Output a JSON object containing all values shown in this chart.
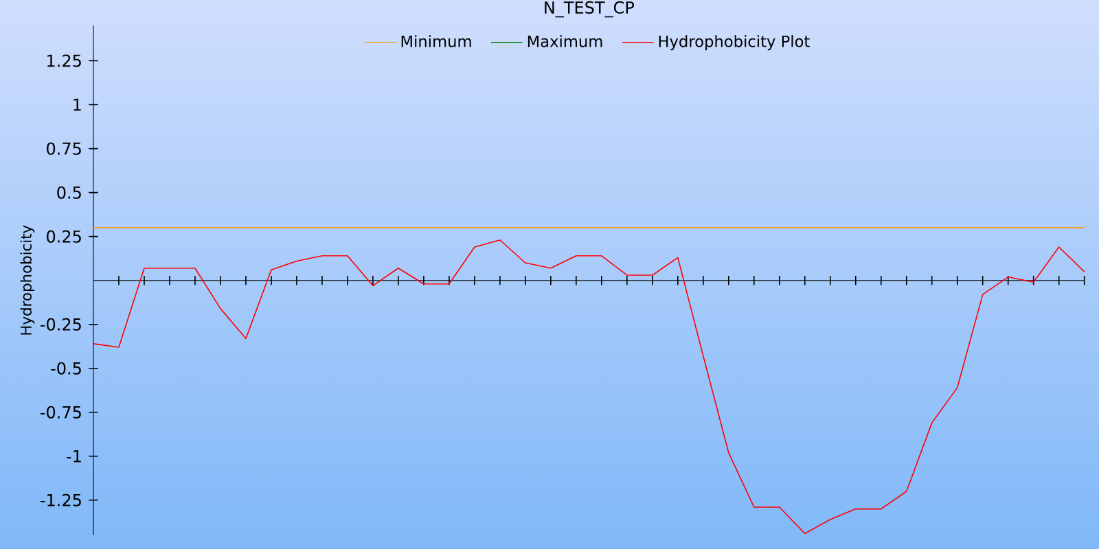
{
  "chart_data": {
    "type": "line",
    "title": "N_TEST_CP",
    "ylabel": "Hydrophobicity",
    "categories": [
      null,
      null,
      null,
      null,
      null,
      null,
      null,
      null,
      null,
      null,
      null,
      null,
      null,
      null,
      null,
      null,
      null,
      null,
      null,
      null,
      null,
      null,
      null,
      null,
      null,
      null,
      null,
      null,
      null,
      null,
      null,
      null,
      null,
      null,
      null,
      null,
      null,
      null,
      null,
      null
    ],
    "series": [
      {
        "name": "Minimum",
        "color": "#f0a030",
        "values": [
          0.3,
          0.3,
          0.3,
          0.3,
          0.3,
          0.3,
          0.3,
          0.3,
          0.3,
          0.3,
          0.3,
          0.3,
          0.3,
          0.3,
          0.3,
          0.3,
          0.3,
          0.3,
          0.3,
          0.3,
          0.3,
          0.3,
          0.3,
          0.3,
          0.3,
          0.3,
          0.3,
          0.3,
          0.3,
          0.3,
          0.3,
          0.3,
          0.3,
          0.3,
          0.3,
          0.3,
          0.3,
          0.3,
          0.3,
          0.3
        ]
      },
      {
        "name": "Maximum",
        "color": "#008000",
        "values": [
          null,
          null,
          null,
          null,
          null,
          null,
          null,
          null,
          null,
          null,
          null,
          null,
          null,
          null,
          null,
          null,
          null,
          null,
          null,
          null,
          null,
          null,
          null,
          null,
          null,
          null,
          null,
          null,
          null,
          null,
          null,
          null,
          null,
          null,
          null,
          null,
          null,
          null,
          null,
          null
        ]
      },
      {
        "name": "Hydrophobicity Plot",
        "color": "#ff0000",
        "values": [
          -0.36,
          -0.38,
          0.07,
          0.07,
          0.07,
          -0.16,
          -0.33,
          0.06,
          0.11,
          0.14,
          0.14,
          -0.03,
          0.07,
          -0.02,
          -0.02,
          0.19,
          0.23,
          0.1,
          0.07,
          0.14,
          0.14,
          0.03,
          0.03,
          0.13,
          -0.43,
          -0.98,
          -1.29,
          -1.29,
          -1.44,
          -1.36,
          -1.3,
          -1.3,
          -1.2,
          -0.81,
          -0.61,
          -0.08,
          0.02,
          -0.01,
          0.19,
          0.05
        ]
      }
    ],
    "ylim": [
      -1.45,
      1.45
    ],
    "yticks": [
      -1.25,
      -1,
      -0.75,
      -0.5,
      -0.25,
      0.25,
      0.5,
      0.75,
      1,
      1.25
    ],
    "tick_labels": "y",
    "legend": "top",
    "line_style": "solid"
  }
}
